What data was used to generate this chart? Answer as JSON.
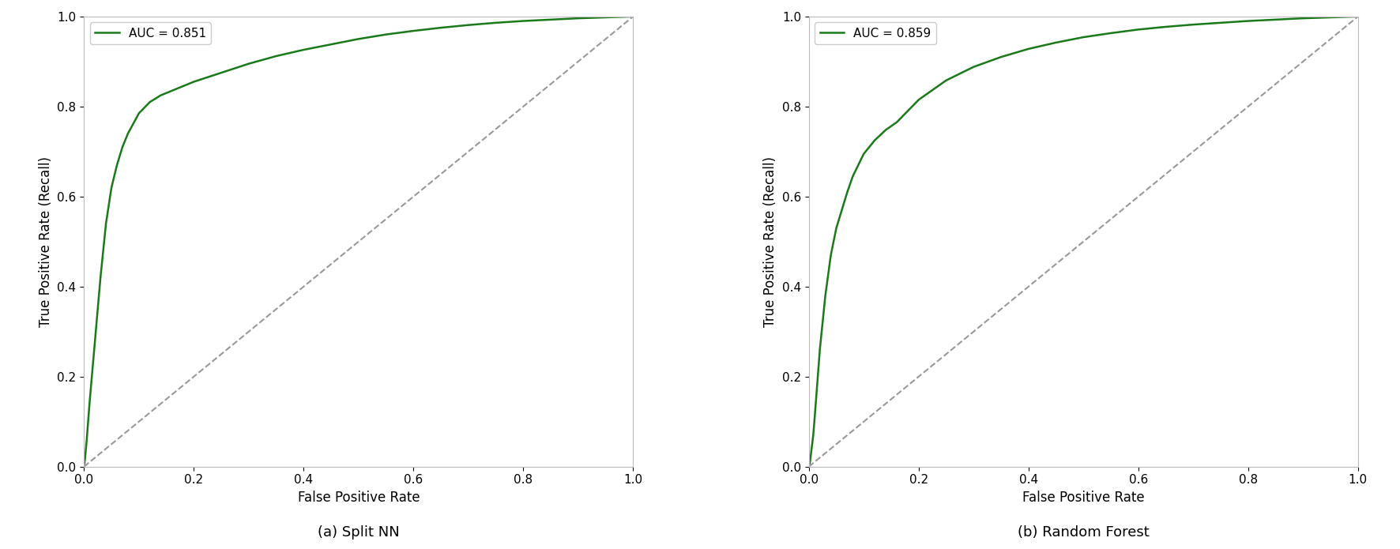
{
  "plot1": {
    "auc": 0.851,
    "label": "AUC = 0.851",
    "subtitle": "(a) Split NN",
    "xlabel": "False Positive Rate",
    "ylabel": "True Positive Rate (Recall)",
    "roc_fpr": [
      0.0,
      0.002,
      0.005,
      0.01,
      0.02,
      0.03,
      0.04,
      0.05,
      0.06,
      0.07,
      0.08,
      0.1,
      0.12,
      0.14,
      0.16,
      0.18,
      0.2,
      0.22,
      0.25,
      0.3,
      0.35,
      0.4,
      0.45,
      0.5,
      0.55,
      0.6,
      0.65,
      0.7,
      0.75,
      0.8,
      0.85,
      0.9,
      0.95,
      1.0
    ],
    "roc_tpr": [
      0.0,
      0.02,
      0.06,
      0.14,
      0.28,
      0.42,
      0.54,
      0.62,
      0.67,
      0.71,
      0.74,
      0.785,
      0.81,
      0.825,
      0.835,
      0.845,
      0.855,
      0.863,
      0.875,
      0.895,
      0.912,
      0.926,
      0.938,
      0.95,
      0.96,
      0.968,
      0.975,
      0.981,
      0.986,
      0.99,
      0.993,
      0.996,
      0.998,
      1.0
    ]
  },
  "plot2": {
    "auc": 0.859,
    "label": "AUC = 0.859",
    "subtitle": "(b) Random Forest",
    "xlabel": "False Positive Rate",
    "ylabel": "True Positive Rate (Recall)",
    "roc_fpr": [
      0.0,
      0.002,
      0.005,
      0.008,
      0.01,
      0.015,
      0.02,
      0.03,
      0.04,
      0.05,
      0.06,
      0.07,
      0.08,
      0.09,
      0.1,
      0.12,
      0.14,
      0.16,
      0.18,
      0.2,
      0.25,
      0.3,
      0.35,
      0.4,
      0.45,
      0.5,
      0.55,
      0.6,
      0.65,
      0.7,
      0.75,
      0.8,
      0.85,
      0.9,
      0.95,
      1.0
    ],
    "roc_tpr": [
      0.0,
      0.01,
      0.04,
      0.07,
      0.1,
      0.18,
      0.26,
      0.38,
      0.47,
      0.53,
      0.57,
      0.61,
      0.645,
      0.67,
      0.695,
      0.725,
      0.748,
      0.765,
      0.79,
      0.815,
      0.858,
      0.888,
      0.91,
      0.928,
      0.942,
      0.954,
      0.963,
      0.971,
      0.977,
      0.982,
      0.986,
      0.99,
      0.993,
      0.996,
      0.998,
      1.0
    ]
  },
  "roc_color": "#1a7a1a",
  "diag_color": "#999999",
  "diag_style": "--",
  "line_width": 1.8,
  "diag_linewidth": 1.5,
  "xlim": [
    0.0,
    1.0
  ],
  "ylim": [
    0.0,
    1.0
  ],
  "xticks": [
    0.0,
    0.2,
    0.4,
    0.6,
    0.8,
    1.0
  ],
  "yticks": [
    0.0,
    0.2,
    0.4,
    0.6,
    0.8,
    1.0
  ],
  "subtitle_fontsize": 13,
  "axis_label_fontsize": 12,
  "tick_fontsize": 11,
  "legend_fontsize": 11,
  "legend_loc": "upper left"
}
